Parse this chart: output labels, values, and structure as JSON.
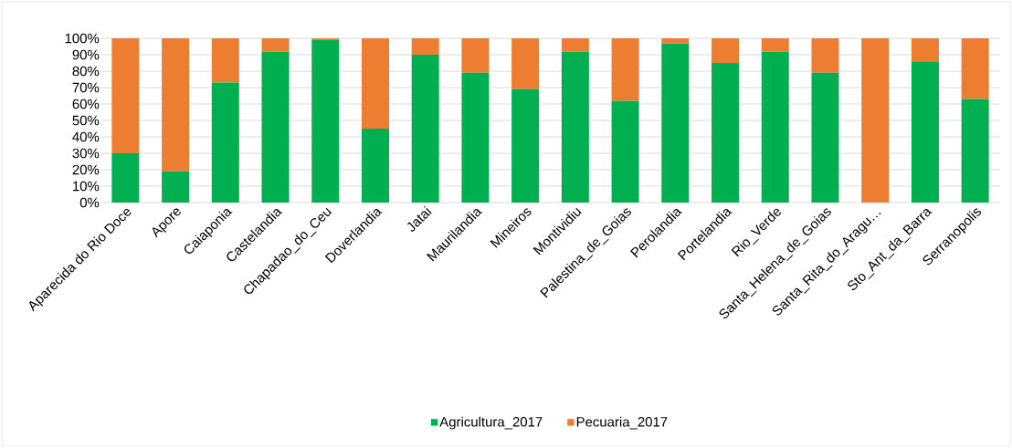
{
  "chart_data": {
    "type": "bar",
    "stacked": true,
    "categories": [
      "Aparecida do Rio Doce",
      "Apore",
      "Caiaponia",
      "Castelandia",
      "Chapadao_do_Ceu",
      "Doverlandia",
      "Jatai",
      "Maurilandia",
      "Mineiros",
      "Montividiu",
      "Palestina_de_Goias",
      "Perolandia",
      "Portelandia",
      "Rio_Verde",
      "Santa_Helena_de_Goias",
      "Santa_Rita_do_Aragu…",
      "Sto_Ant_da_Barra",
      "Serranopolis"
    ],
    "series": [
      {
        "name": "Agricultura_2017",
        "color": "#00b050",
        "values": [
          30,
          19,
          73,
          92,
          99,
          45,
          90,
          79,
          69,
          92,
          62,
          97,
          85,
          92,
          79,
          0,
          86,
          63
        ]
      },
      {
        "name": "Pecuaria_2017",
        "color": "#ed7d31",
        "values": [
          70,
          81,
          27,
          8,
          1,
          55,
          10,
          21,
          31,
          8,
          38,
          3,
          15,
          8,
          21,
          100,
          14,
          37
        ]
      }
    ],
    "ylim": [
      0,
      100
    ],
    "yticks": [
      {
        "value": 0,
        "label": "0%"
      },
      {
        "value": 10,
        "label": "10%"
      },
      {
        "value": 20,
        "label": "20%"
      },
      {
        "value": 30,
        "label": "30%"
      },
      {
        "value": 40,
        "label": "40%"
      },
      {
        "value": 50,
        "label": "50%"
      },
      {
        "value": 60,
        "label": "60%"
      },
      {
        "value": 70,
        "label": "70%"
      },
      {
        "value": 80,
        "label": "80%"
      },
      {
        "value": 90,
        "label": "90%"
      },
      {
        "value": 100,
        "label": "100%"
      }
    ],
    "grid": "y",
    "legend": "bottom"
  }
}
